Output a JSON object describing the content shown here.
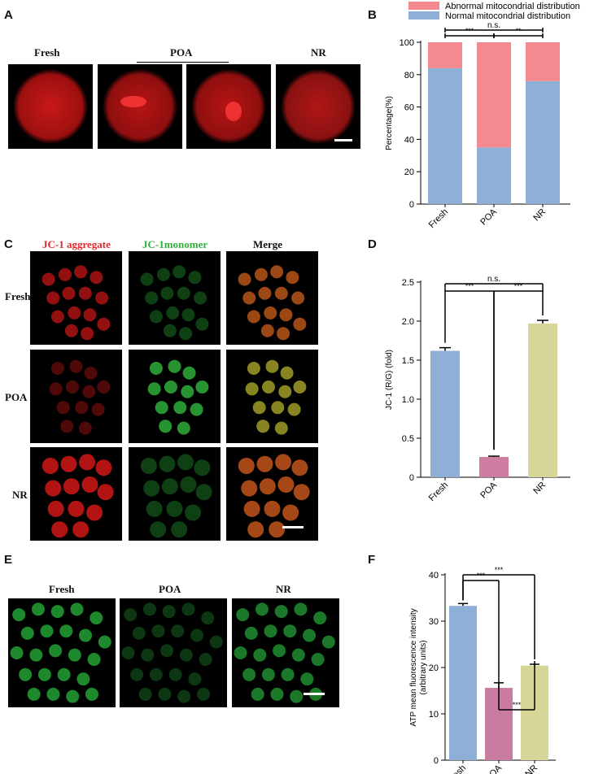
{
  "panels": {
    "A": {
      "letter": "A",
      "labels": [
        "Fresh",
        "POA",
        "NR"
      ]
    },
    "B": {
      "letter": "B",
      "chart_data": {
        "type": "bar",
        "stacked": true,
        "categories": [
          "Fresh",
          "POA",
          "NR"
        ],
        "series": [
          {
            "name": "Normal mitocondrial distribution",
            "values": [
              84,
              35,
              76
            ],
            "color": "#8fb0d6"
          },
          {
            "name": "Abnormal mitocondrial distribution",
            "values": [
              16,
              65,
              24
            ],
            "color": "#f48a8f"
          }
        ],
        "ylabel": "Percentage(%)",
        "ylim": [
          0,
          100
        ],
        "yticks": [
          "0",
          "20",
          "40",
          "60",
          "80",
          "100"
        ],
        "legend": "top",
        "significance": [
          {
            "from": "Fresh",
            "to": "POA",
            "label": "***"
          },
          {
            "from": "POA",
            "to": "NR",
            "label": "**"
          },
          {
            "from": "Fresh",
            "to": "NR",
            "label": "n.s."
          }
        ]
      }
    },
    "C": {
      "letter": "C",
      "col_labels": [
        "JC-1 aggregate",
        "JC-1monomer",
        "Merge"
      ],
      "row_labels": [
        "Fresh",
        "POA",
        "NR"
      ]
    },
    "D": {
      "letter": "D",
      "chart_data": {
        "type": "bar",
        "categories": [
          "Fresh",
          "POA",
          "NR"
        ],
        "values": [
          1.62,
          0.26,
          1.97
        ],
        "errors": [
          0.04,
          0.01,
          0.04
        ],
        "colors": [
          "#8fb0d6",
          "#cd7ea0",
          "#d7d699"
        ],
        "ylabel": "JC-1 (R/G) (fold)",
        "ylim": [
          0,
          2.5
        ],
        "yticks": [
          "0",
          "0.5",
          "1.0",
          "1.5",
          "2.0",
          "2.5"
        ],
        "significance": [
          {
            "from": "Fresh",
            "to": "POA",
            "label": "***"
          },
          {
            "from": "POA",
            "to": "NR",
            "label": "***"
          },
          {
            "from": "Fresh",
            "to": "NR",
            "label": "n.s."
          }
        ]
      }
    },
    "E": {
      "letter": "E",
      "labels": [
        "Fresh",
        "POA",
        "NR"
      ]
    },
    "F": {
      "letter": "F",
      "chart_data": {
        "type": "bar",
        "categories": [
          "Fresh",
          "POA",
          "NR"
        ],
        "values": [
          33.3,
          15.6,
          20.4
        ],
        "errors": [
          0.5,
          1.1,
          0.3
        ],
        "colors": [
          "#8fb0d6",
          "#c97ba0",
          "#d7d699"
        ],
        "ylabel": "ATP mean fluorescence intensity",
        "ylabel2": "(arbitrary units)",
        "ylim": [
          0,
          40
        ],
        "yticks": [
          "0",
          "10",
          "20",
          "30",
          "40"
        ],
        "significance": [
          {
            "from": "Fresh",
            "to": "POA",
            "label": "***"
          },
          {
            "from": "Fresh",
            "to": "NR",
            "label": "***"
          },
          {
            "from": "POA",
            "to": "NR",
            "label": "***"
          }
        ]
      }
    }
  }
}
